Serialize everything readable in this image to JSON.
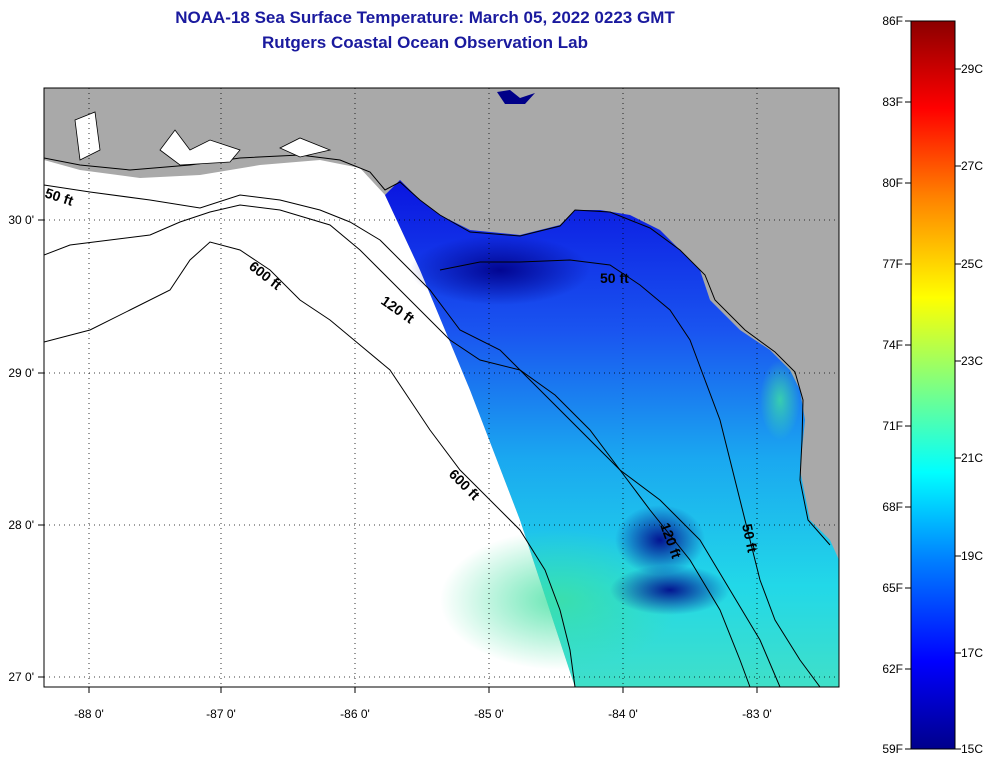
{
  "title_line1": "NOAA-18 Sea Surface Temperature:  March 05, 2022 0223 GMT",
  "title_line2": "Rutgers Coastal Ocean Observation Lab",
  "map": {
    "lon_labels": [
      "-88 0'",
      "-87 0'",
      "-86 0'",
      "-85 0'",
      "-84 0'",
      "-83 0'"
    ],
    "lat_labels": [
      "30 0'",
      "29 0'",
      "28 0'",
      "27 0'"
    ],
    "contour_labels": [
      "50 ft",
      "600 ft",
      "120 ft",
      "50 ft",
      "600 ft",
      "120 ft",
      "50 ft"
    ],
    "colors": {
      "land": "#a9a9a9",
      "no_data": "#ffffff",
      "coastline": "#000000"
    }
  },
  "colorbar": {
    "fahrenheit": [
      "86F",
      "83F",
      "80F",
      "77F",
      "74F",
      "71F",
      "68F",
      "65F",
      "62F",
      "59F"
    ],
    "celsius": [
      "29C",
      "27C",
      "25C",
      "23C",
      "21C",
      "19C",
      "17C",
      "15C"
    ],
    "colors": [
      "#00008b",
      "#0000ff",
      "#0080ff",
      "#00ffff",
      "#80ff80",
      "#ffff00",
      "#ff8000",
      "#ff0000",
      "#8b0000"
    ]
  }
}
